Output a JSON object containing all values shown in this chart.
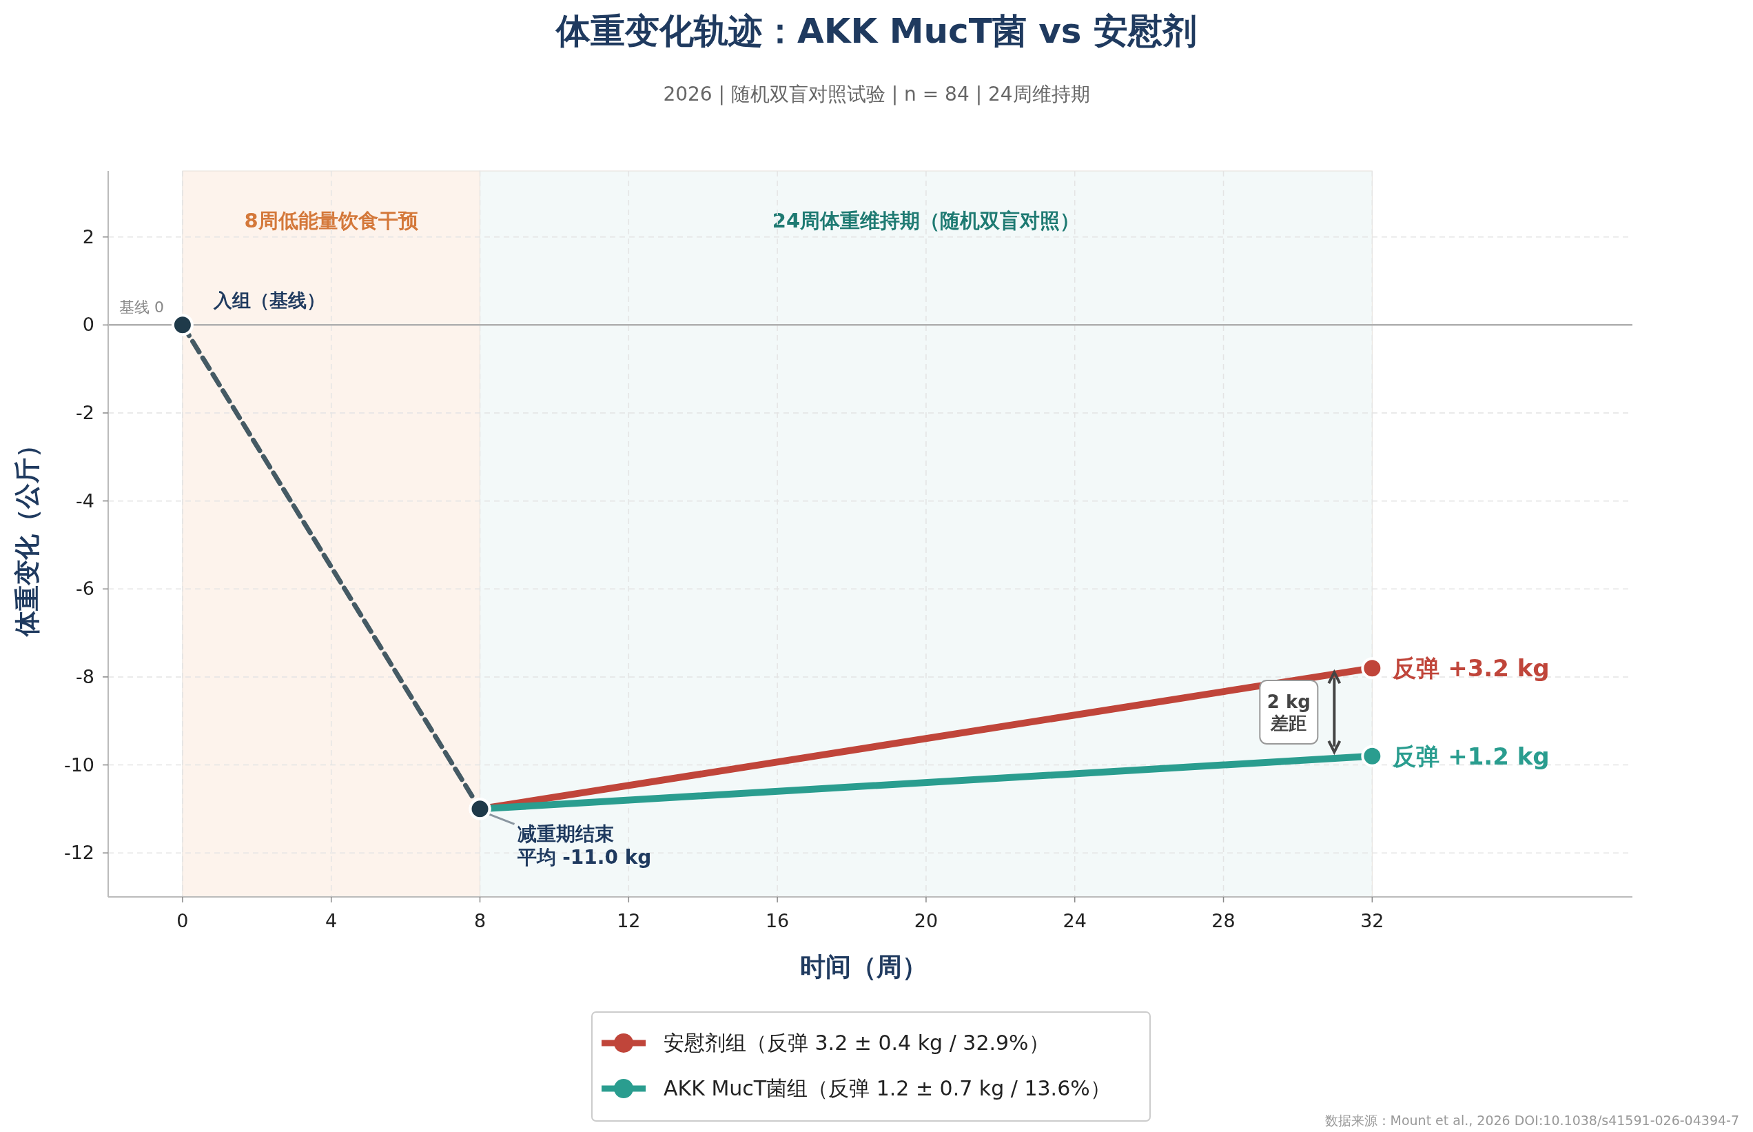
{
  "chart_data": {
    "type": "line",
    "title": "体重变化轨迹：AKK MucT菌 vs 安慰剂",
    "subtitle": "2026  |  随机双盲对照试验  |  n = 84  |  24周维持期",
    "xlabel": "时间（周）",
    "ylabel": "体重变化（公斤）",
    "xlim": [
      -2,
      39
    ],
    "ylim": [
      -13,
      3.5
    ],
    "xticks": [
      0,
      4,
      8,
      12,
      16,
      20,
      24,
      28,
      32
    ],
    "yticks": [
      -12,
      -10,
      -8,
      -6,
      -4,
      -2,
      0,
      2
    ],
    "grid": true,
    "legend": "bottom",
    "marker": "circle",
    "series": [
      {
        "x": [
          0,
          8
        ],
        "values": [
          0,
          -11
        ],
        "color": "#455a64",
        "line_style": "dashed"
      },
      {
        "name": "安慰剂组（反弹 3.2 ± 0.4 kg / 32.9%）",
        "x": [
          8,
          32
        ],
        "values": [
          -11,
          -7.8
        ],
        "color": "#c0453a"
      },
      {
        "name": "AKK MucT菌组（反弹 1.2 ± 0.7 kg / 13.6%）",
        "x": [
          8,
          32
        ],
        "values": [
          -11,
          -9.8
        ],
        "color": "#2a9d8f"
      }
    ],
    "bands": [
      {
        "axis": "x",
        "from": 0,
        "to": 8,
        "label": "8周低能量饮食干预",
        "color": "#fdf3ec"
      },
      {
        "axis": "x",
        "from": 8,
        "to": 32,
        "label": "24周体重维持期（随机双盲对照）",
        "color": "#f3f9f9"
      }
    ],
    "ref_lines": [
      {
        "axis": "y",
        "value": 0,
        "label": "基线 0",
        "color": "#b0b0b0"
      }
    ],
    "annotations": [
      {
        "text": "入组（基线）",
        "x": 0,
        "y": 0
      },
      {
        "text": "减重期结束",
        "x": 8,
        "y": -11
      },
      {
        "text": "平均 -11.0 kg",
        "x": 8,
        "y": -11
      },
      {
        "text": "反弹 +3.2 kg",
        "x": 32,
        "y": -7.8
      },
      {
        "text": "反弹 +1.2 kg",
        "x": 32,
        "y": -9.8
      },
      "2 kg",
      "差距",
      "数据来源：Mount et al., 2026  DOI:10.1038/s41591-026-04394-7"
    ]
  }
}
